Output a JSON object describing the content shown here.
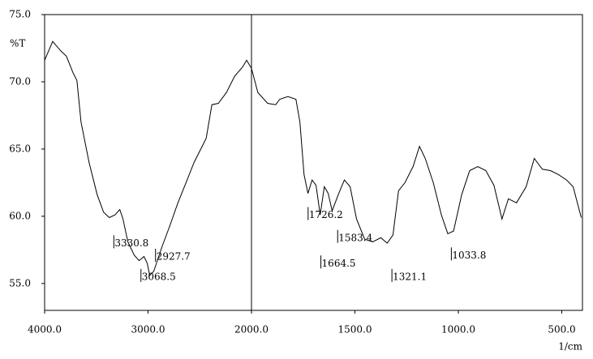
{
  "chart_data": {
    "type": "line",
    "y_label": "%T",
    "x_label": "1/cm",
    "color": "#000000",
    "x": [
      4000,
      3922,
      3844,
      3789,
      3727,
      3688,
      3648,
      3570,
      3492,
      3430,
      3375,
      3320,
      3273,
      3242,
      3195,
      3133,
      3086,
      3039,
      3008,
      2984,
      2945,
      2906,
      2867,
      2789,
      2711,
      2633,
      2555,
      2438,
      2383,
      2320,
      2242,
      2164,
      2086,
      2047,
      2000,
      1969,
      1922,
      1883,
      1863,
      1824,
      1785,
      1766,
      1746,
      1727,
      1707,
      1688,
      1668,
      1648,
      1629,
      1610,
      1578,
      1551,
      1523,
      1492,
      1453,
      1414,
      1375,
      1344,
      1316,
      1289,
      1258,
      1219,
      1188,
      1160,
      1121,
      1082,
      1051,
      1023,
      984,
      945,
      906,
      867,
      828,
      789,
      758,
      719,
      672,
      633,
      594,
      555,
      516,
      477,
      445,
      406
    ],
    "values": [
      71.6,
      73.0,
      72.3,
      71.9,
      70.7,
      70.1,
      67.0,
      64.0,
      61.6,
      60.3,
      59.9,
      60.1,
      60.5,
      59.8,
      58.1,
      57.1,
      56.7,
      57.0,
      56.5,
      55.6,
      55.9,
      56.8,
      57.7,
      59.3,
      61.0,
      62.5,
      64.0,
      65.8,
      68.3,
      68.4,
      69.2,
      70.4,
      71.1,
      71.6,
      71.0,
      69.2,
      68.4,
      68.3,
      68.7,
      68.9,
      68.7,
      67.0,
      63.1,
      61.7,
      62.7,
      62.3,
      60.1,
      62.2,
      61.7,
      60.4,
      61.7,
      62.7,
      62.2,
      59.8,
      58.3,
      58.1,
      58.4,
      58.0,
      58.6,
      61.9,
      62.5,
      63.7,
      65.2,
      64.3,
      62.5,
      60.1,
      58.7,
      58.9,
      61.6,
      63.4,
      63.7,
      63.4,
      62.3,
      59.8,
      61.3,
      61.0,
      62.2,
      64.3,
      63.5,
      63.4,
      63.1,
      62.7,
      62.2,
      59.9
    ],
    "peaks": [
      {
        "x": 3330.8,
        "y": 58.1
      },
      {
        "x": 2927.7,
        "y": 57.1
      },
      {
        "x": 3068.5,
        "y": 55.6
      },
      {
        "x": 1726.2,
        "y": 60.2
      },
      {
        "x": 1664.5,
        "y": 56.6
      },
      {
        "x": 1583.4,
        "y": 58.5
      },
      {
        "x": 1321.1,
        "y": 55.6
      },
      {
        "x": 1033.8,
        "y": 57.2
      }
    ],
    "x_scale_change": 2000,
    "xlim": [
      4000,
      400
    ],
    "ylim": [
      53,
      75
    ],
    "xticks": [
      {
        "value": 4000,
        "label": "4000.0"
      },
      {
        "value": 3000,
        "label": "3000.0"
      },
      {
        "value": 2000,
        "label": "2000.0"
      },
      {
        "value": 1500,
        "label": "1500.0"
      },
      {
        "value": 1000,
        "label": "1000.0"
      },
      {
        "value": 500,
        "label": "500.0"
      }
    ],
    "yticks": [
      {
        "value": 55,
        "label": "55.0"
      },
      {
        "value": 60,
        "label": "60.0"
      },
      {
        "value": 65,
        "label": "65.0"
      },
      {
        "value": 70,
        "label": "70.0"
      },
      {
        "value": 75,
        "label": "75.0"
      }
    ]
  }
}
